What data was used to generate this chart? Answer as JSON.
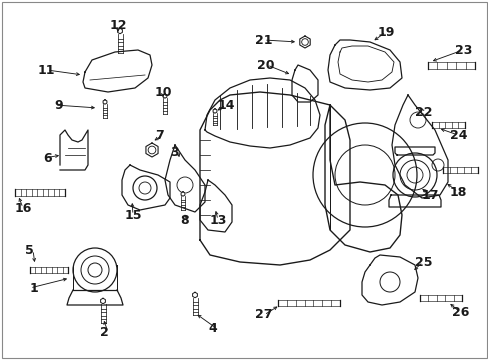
{
  "bg_color": "#ffffff",
  "line_color": "#1a1a1a",
  "fig_width": 4.89,
  "fig_height": 3.6,
  "dpi": 100,
  "label_fontsize": 9,
  "lw": 0.9
}
